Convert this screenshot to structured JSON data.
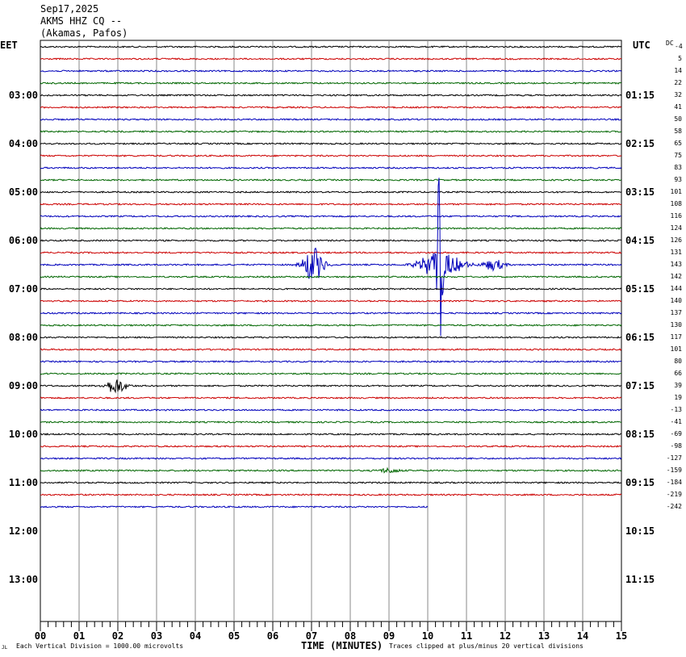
{
  "header": {
    "date": "Sep17,2025",
    "station": "AKMS HHZ CQ --",
    "location": "(Akamas, Pafos)"
  },
  "left_zone_label": "EET",
  "right_zone_label": "UTC",
  "dc_label": "DC",
  "dc_first": "-4",
  "footer": {
    "left_mark": "JL",
    "scale_note": "Each Vertical Division = 1000.00 microvolts",
    "clip_note": "Traces clipped at plus/minus 20 vertical divisions"
  },
  "chart_data": {
    "type": "line",
    "title": "AKMS HHZ CQ -- (Akamas, Pafos) Sep17,2025",
    "xlabel": "TIME (MINUTES)",
    "xlim": [
      0,
      15
    ],
    "x_ticks": [
      "00",
      "01",
      "02",
      "03",
      "04",
      "05",
      "06",
      "07",
      "08",
      "09",
      "10",
      "11",
      "12",
      "13",
      "14",
      "15"
    ],
    "left_hour_labels": [
      "03:00",
      "04:00",
      "05:00",
      "06:00",
      "07:00",
      "08:00",
      "09:00",
      "10:00",
      "11:00",
      "12:00",
      "13:00"
    ],
    "right_hour_labels": [
      "01:15",
      "02:15",
      "03:15",
      "04:15",
      "05:15",
      "06:15",
      "07:15",
      "08:15",
      "09:15",
      "10:15",
      "11:15"
    ],
    "trace_colors": [
      "#000000",
      "#cc0000",
      "#0000bb",
      "#006600"
    ],
    "trace_count": 39,
    "last_trace_end_minute": 10,
    "dc_offsets": [
      "5",
      "14",
      "22",
      "32",
      "41",
      "50",
      "58",
      "65",
      "75",
      "83",
      "93",
      "101",
      "108",
      "116",
      "124",
      "126",
      "131",
      "143",
      "142",
      "144",
      "140",
      "137",
      "130",
      "117",
      "101",
      "80",
      "66",
      "39",
      "19",
      "-13",
      "-41",
      "-69",
      "-98",
      "-127",
      "-159",
      "-184",
      "-219",
      "-242"
    ],
    "events": [
      {
        "trace": 18,
        "minute": 7.05,
        "amplitude_div": 1.6
      },
      {
        "trace": 18,
        "minute": 10.3,
        "amplitude_div": 20
      },
      {
        "trace": 18,
        "minute": 11.7,
        "amplitude_div": 0.5
      },
      {
        "trace": 28,
        "minute": 1.95,
        "amplitude_div": 0.7
      },
      {
        "trace": 35,
        "minute": 9.0,
        "amplitude_div": 0.2
      }
    ]
  }
}
